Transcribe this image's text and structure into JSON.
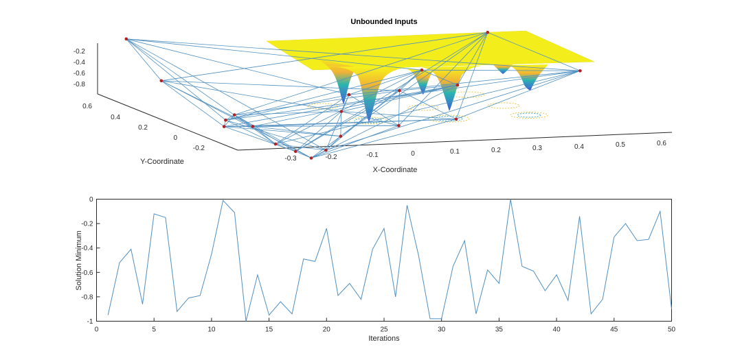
{
  "figure": {
    "plot3d": {
      "title": "Unbounded Inputs",
      "xlabel": "X-Coordinate",
      "ylabel": "Y-Coordinate",
      "x_ticks": [
        "-0.3",
        "-0.2",
        "-0.1",
        "0",
        "0.1",
        "0.2",
        "0.3",
        "0.4",
        "0.5",
        "0.6"
      ],
      "y_ticks": [
        "-0.2",
        "0",
        "0.2",
        "0.4",
        "0.6"
      ],
      "z_ticks": [
        "-0.2",
        "-0.4",
        "-0.6",
        "-0.8"
      ]
    },
    "plot2d": {
      "xlabel": "Iterations",
      "ylabel": "Solution Minimum",
      "x_ticks": [
        "0",
        "5",
        "10",
        "15",
        "20",
        "25",
        "30",
        "35",
        "40",
        "45",
        "50"
      ],
      "y_ticks": [
        "0",
        "-0.2",
        "-0.4",
        "-0.6",
        "-0.8",
        "-1"
      ]
    }
  },
  "colors": {
    "line": "#4f8fc0",
    "surface_top": "#f5f51a",
    "surface_mid": "#2ab5b0",
    "surface_low": "#3b5bdb",
    "marker": "#b22222",
    "axis": "#262626"
  },
  "chart_data": [
    {
      "type": "scatter",
      "title": "Unbounded Inputs",
      "xlabel": "X-Coordinate",
      "ylabel": "Y-Coordinate",
      "zlabel": "",
      "xlim": [
        -0.35,
        0.65
      ],
      "ylim": [
        -0.3,
        0.7
      ],
      "zlim": [
        -1,
        0
      ],
      "grid": false,
      "surface": "3D surface with several Gaussian-like wells and contour rings below",
      "points": [
        {
          "x": -0.3,
          "y": 0.65,
          "z": -0.18
        },
        {
          "x": -0.3,
          "y": 0.4,
          "z": -0.45
        },
        {
          "x": -0.22,
          "y": 0.2,
          "z": -0.8
        },
        {
          "x": -0.21,
          "y": 0.22,
          "z": -0.75
        },
        {
          "x": -0.18,
          "y": 0.25,
          "z": -0.72
        },
        {
          "x": -0.17,
          "y": 0.15,
          "z": -0.78
        },
        {
          "x": -0.15,
          "y": 0.05,
          "z": -0.9
        },
        {
          "x": -0.12,
          "y": 0.0,
          "z": -0.95
        },
        {
          "x": -0.1,
          "y": -0.05,
          "z": -0.99
        },
        {
          "x": -0.05,
          "y": 0.0,
          "z": -0.95
        },
        {
          "x": 0.0,
          "y": 0.05,
          "z": -0.85
        },
        {
          "x": 0.05,
          "y": 0.2,
          "z": -0.7
        },
        {
          "x": 0.1,
          "y": 0.3,
          "z": -0.6
        },
        {
          "x": 0.15,
          "y": 0.1,
          "z": -0.8
        },
        {
          "x": 0.2,
          "y": 0.25,
          "z": -0.55
        },
        {
          "x": 0.3,
          "y": 0.4,
          "z": -0.45
        },
        {
          "x": 0.35,
          "y": 0.3,
          "z": -0.55
        },
        {
          "x": 0.5,
          "y": 0.55,
          "z": -0.2
        },
        {
          "x": 0.6,
          "y": 0.2,
          "z": -0.4
        },
        {
          "x": 0.25,
          "y": 0.0,
          "z": -0.7
        }
      ]
    },
    {
      "type": "line",
      "title": "",
      "xlabel": "Iterations",
      "ylabel": "Solution Minimum",
      "xlim": [
        0,
        50
      ],
      "ylim": [
        -1,
        0
      ],
      "grid": false,
      "x": [
        1,
        2,
        3,
        4,
        5,
        6,
        7,
        8,
        9,
        10,
        11,
        12,
        13,
        14,
        15,
        16,
        17,
        18,
        19,
        20,
        21,
        22,
        23,
        24,
        25,
        26,
        27,
        28,
        29,
        30,
        31,
        32,
        33,
        34,
        35,
        36,
        37,
        38,
        39,
        40,
        41,
        42,
        43,
        44,
        45,
        46,
        47,
        48,
        49,
        50
      ],
      "values": [
        -0.95,
        -0.52,
        -0.41,
        -0.86,
        -0.12,
        -0.15,
        -0.92,
        -0.81,
        -0.79,
        -0.45,
        -0.01,
        -0.11,
        -1.0,
        -0.62,
        -0.95,
        -0.84,
        -0.94,
        -0.49,
        -0.51,
        -0.24,
        -0.79,
        -0.69,
        -0.82,
        -0.41,
        -0.24,
        -0.8,
        -0.05,
        -0.46,
        -0.98,
        -0.98,
        -0.55,
        -0.34,
        -0.94,
        -0.58,
        -0.69,
        0.0,
        -0.55,
        -0.59,
        -0.75,
        -0.62,
        -0.83,
        -0.14,
        -0.94,
        -0.82,
        -0.31,
        -0.2,
        -0.34,
        -0.33,
        -0.1,
        -0.9
      ]
    }
  ]
}
